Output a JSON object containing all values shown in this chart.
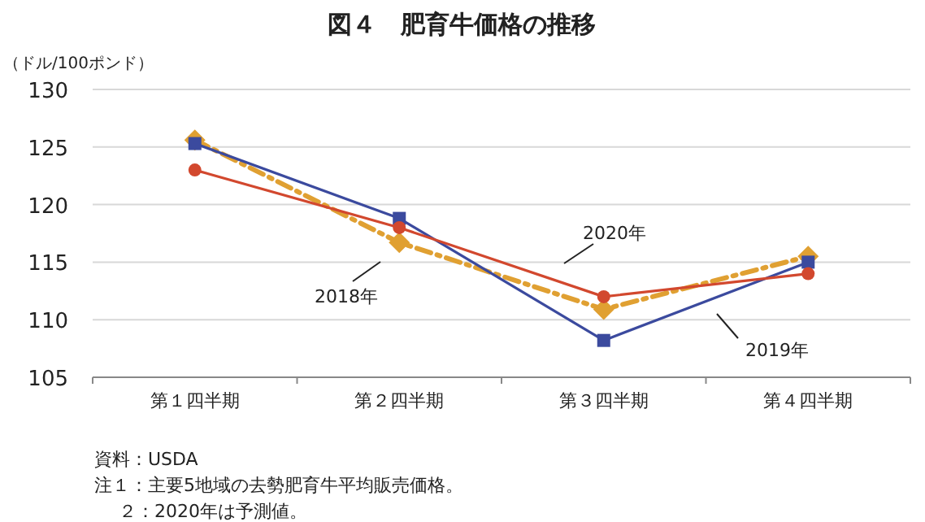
{
  "chart_data": {
    "type": "line",
    "title": "図４　肥育牛価格の推移",
    "ylabel": "（ドル/100ポンド）",
    "categories": [
      "第１四半期",
      "第２四半期",
      "第３四半期",
      "第４四半期"
    ],
    "series": [
      {
        "name": "2018年",
        "color": "#e0a032",
        "values": [
          125.6,
          116.7,
          110.9,
          115.5
        ],
        "marker": "diamond",
        "line_style": "dashdot"
      },
      {
        "name": "2019年",
        "color": "#3b4a9e",
        "values": [
          125.3,
          118.8,
          108.2,
          115.0
        ],
        "marker": "square",
        "line_style": "solid"
      },
      {
        "name": "2020年",
        "color": "#d2482e",
        "values": [
          123.0,
          118.0,
          112.0,
          114.0
        ],
        "marker": "circle",
        "line_style": "solid"
      }
    ],
    "ylim": [
      105,
      130
    ],
    "yticks": [
      105,
      110,
      115,
      120,
      125,
      130
    ],
    "grid": "y",
    "annotations": [
      "資料：USDA",
      "注１：主要5地域の去勢肥育牛平均販売価格。",
      "２：2020年は予測値。"
    ]
  }
}
